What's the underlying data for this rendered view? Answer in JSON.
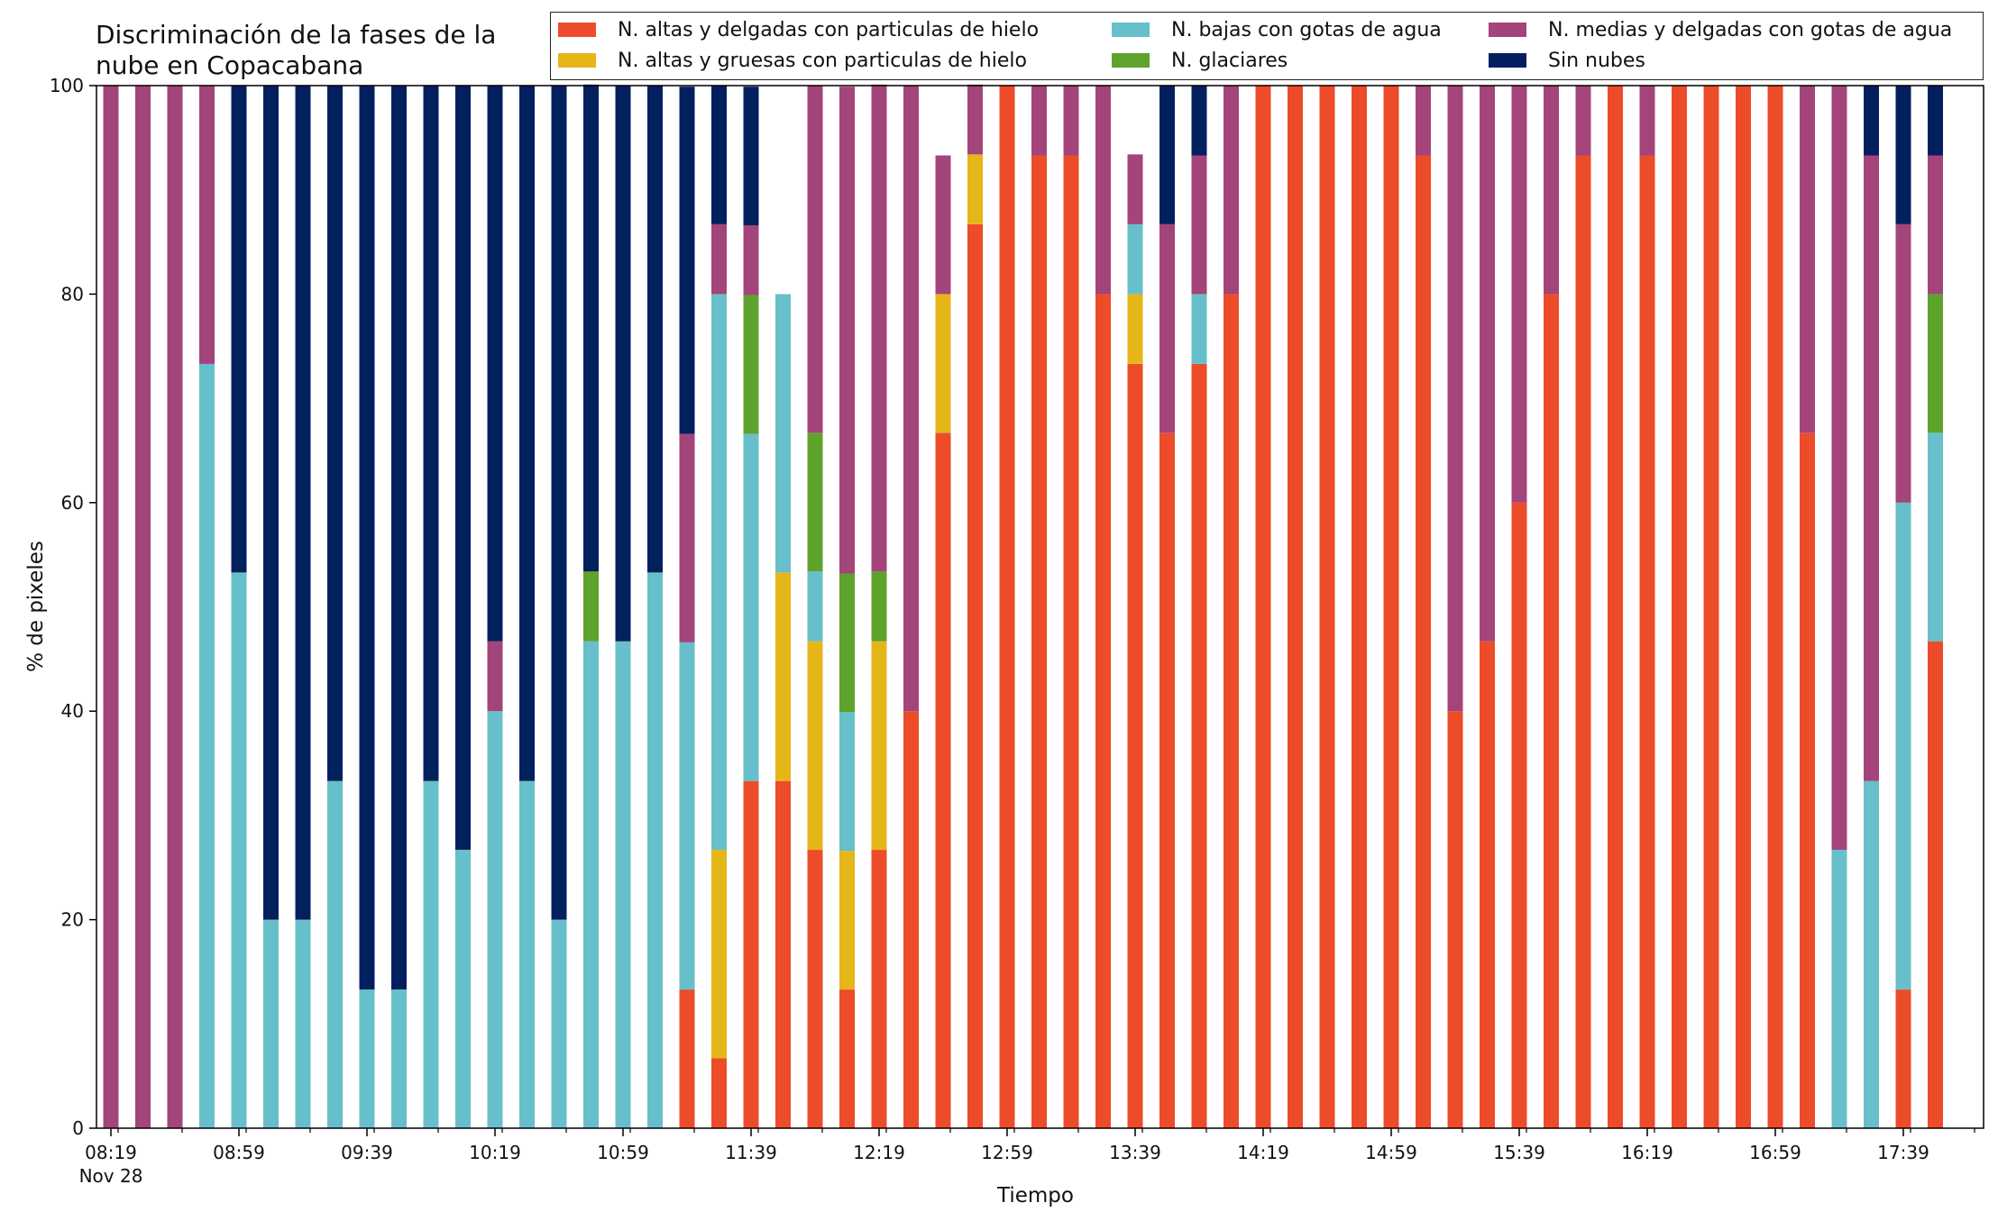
{
  "chart_data": {
    "type": "bar",
    "stacked": true,
    "title": "Discriminación de la fases de la\nnube en Copacabana",
    "xlabel": "Tiempo",
    "ylabel": "% de pixeles",
    "ylim": [
      0,
      100
    ],
    "yticks": [
      0,
      20,
      40,
      60,
      80,
      100
    ],
    "xtick_labels": [
      "08:19",
      "08:59",
      "09:39",
      "10:19",
      "10:59",
      "11:39",
      "12:19",
      "12:59",
      "13:39",
      "14:19",
      "14:59",
      "15:39",
      "16:19",
      "16:59",
      "17:39"
    ],
    "xtick_date": "Nov 28",
    "grid": false,
    "legend_position": "top",
    "categories": [
      "08:19",
      "08:29",
      "08:39",
      "08:49",
      "08:59",
      "09:09",
      "09:19",
      "09:29",
      "09:39",
      "09:49",
      "09:59",
      "10:09",
      "10:19",
      "10:29",
      "10:39",
      "10:49",
      "10:59",
      "11:09",
      "11:19",
      "11:29",
      "11:39",
      "11:49",
      "11:59",
      "12:09",
      "12:19",
      "12:29",
      "12:39",
      "12:49",
      "12:59",
      "13:09",
      "13:19",
      "13:29",
      "13:39",
      "13:49",
      "13:59",
      "14:09",
      "14:19",
      "14:29",
      "14:39",
      "14:49",
      "14:59",
      "15:09",
      "15:19",
      "15:29",
      "15:39",
      "15:49",
      "15:59",
      "16:09",
      "16:19",
      "16:29",
      "16:39",
      "16:49",
      "16:59",
      "17:09",
      "17:19",
      "17:29",
      "17:39",
      "17:49"
    ],
    "series": [
      {
        "name": "N. altas y delgadas con particulas de hielo",
        "color": "#ec4c2a",
        "values": [
          0,
          0,
          0,
          0,
          0,
          0,
          0,
          0,
          0,
          0,
          0,
          0,
          0,
          0,
          0,
          0,
          0,
          0,
          13.3,
          6.7,
          33.3,
          33.3,
          26.7,
          13.3,
          26.7,
          40,
          66.7,
          86.7,
          100,
          93.3,
          93.3,
          80,
          73.3,
          66.7,
          73.3,
          80,
          100,
          100,
          100,
          100,
          100,
          93.3,
          40,
          46.7,
          60,
          80,
          93.3,
          100,
          93.3,
          100,
          100,
          100,
          100,
          66.7,
          0,
          0,
          13.3,
          46.7
        ]
      },
      {
        "name": "N. altas y gruesas con particulas de hielo",
        "color": "#e6b619",
        "values": [
          0,
          0,
          0,
          0,
          0,
          0,
          0,
          0,
          0,
          0,
          0,
          0,
          0,
          0,
          0,
          0,
          0,
          0,
          0,
          20,
          0,
          20,
          20,
          13.3,
          20,
          0,
          13.3,
          6.7,
          0,
          0,
          0,
          0,
          6.7,
          0,
          0,
          0,
          0,
          0,
          0,
          0,
          0,
          0,
          0,
          0,
          0,
          0,
          0,
          0,
          0,
          0,
          0,
          0,
          0,
          0,
          0,
          0,
          0,
          0
        ]
      },
      {
        "name": "N. bajas con gotas de agua",
        "color": "#67bfcb",
        "values": [
          0,
          0,
          0,
          73.3,
          53.3,
          20,
          20,
          33.3,
          13.3,
          13.3,
          33.3,
          26.7,
          40,
          33.3,
          20,
          46.7,
          46.7,
          53.3,
          33.3,
          53.3,
          33.3,
          26.7,
          6.7,
          13.3,
          0,
          0,
          0,
          0,
          0,
          0,
          0,
          0,
          6.7,
          0,
          6.7,
          0,
          0,
          0,
          0,
          0,
          0,
          0,
          0,
          0,
          0,
          0,
          0,
          0,
          0,
          0,
          0,
          0,
          0,
          0,
          26.7,
          33.3,
          46.7,
          20
        ]
      },
      {
        "name": "N. glaciares",
        "color": "#5fa22c",
        "values": [
          0,
          0,
          0,
          0,
          0,
          0,
          0,
          0,
          0,
          0,
          0,
          0,
          0,
          0,
          0,
          6.7,
          0,
          0,
          0,
          0,
          13.3,
          0,
          13.3,
          13.3,
          6.7,
          0,
          0,
          0,
          0,
          0,
          0,
          0,
          0,
          0,
          0,
          0,
          0,
          0,
          0,
          0,
          0,
          0,
          0,
          0,
          0,
          0,
          0,
          0,
          0,
          0,
          0,
          0,
          0,
          0,
          0,
          0,
          0,
          13.3
        ]
      },
      {
        "name": "N. medias y delgadas con gotas de agua",
        "color": "#a3447a",
        "values": [
          100,
          100,
          100,
          26.7,
          0,
          0,
          0,
          0,
          0,
          0,
          0,
          0,
          6.7,
          0,
          0,
          0,
          0,
          0,
          20,
          6.7,
          6.7,
          0,
          33.3,
          46.7,
          46.7,
          60,
          13.3,
          6.7,
          0,
          6.7,
          6.7,
          20,
          6.7,
          20,
          13.3,
          20,
          0,
          0,
          0,
          0,
          0,
          6.7,
          60,
          53.3,
          40,
          20,
          6.7,
          0,
          6.7,
          0,
          0,
          0,
          0,
          33.3,
          73.3,
          60,
          26.7,
          13.3
        ]
      },
      {
        "name": "Sin nubes",
        "color": "#03205e",
        "values": [
          0,
          0,
          0,
          0,
          46.7,
          80,
          80,
          66.7,
          86.7,
          86.7,
          66.7,
          73.3,
          53.3,
          66.7,
          80,
          46.7,
          53.3,
          46.7,
          33.3,
          13.3,
          13.3,
          0,
          0,
          0,
          0,
          0,
          0,
          0,
          0,
          0,
          0,
          0,
          0,
          13.3,
          6.7,
          0,
          0,
          0,
          0,
          0,
          0,
          0,
          0,
          0,
          0,
          0,
          0,
          0,
          0,
          0,
          0,
          0,
          0,
          0,
          0,
          6.7,
          13.3,
          6.7
        ]
      }
    ]
  }
}
